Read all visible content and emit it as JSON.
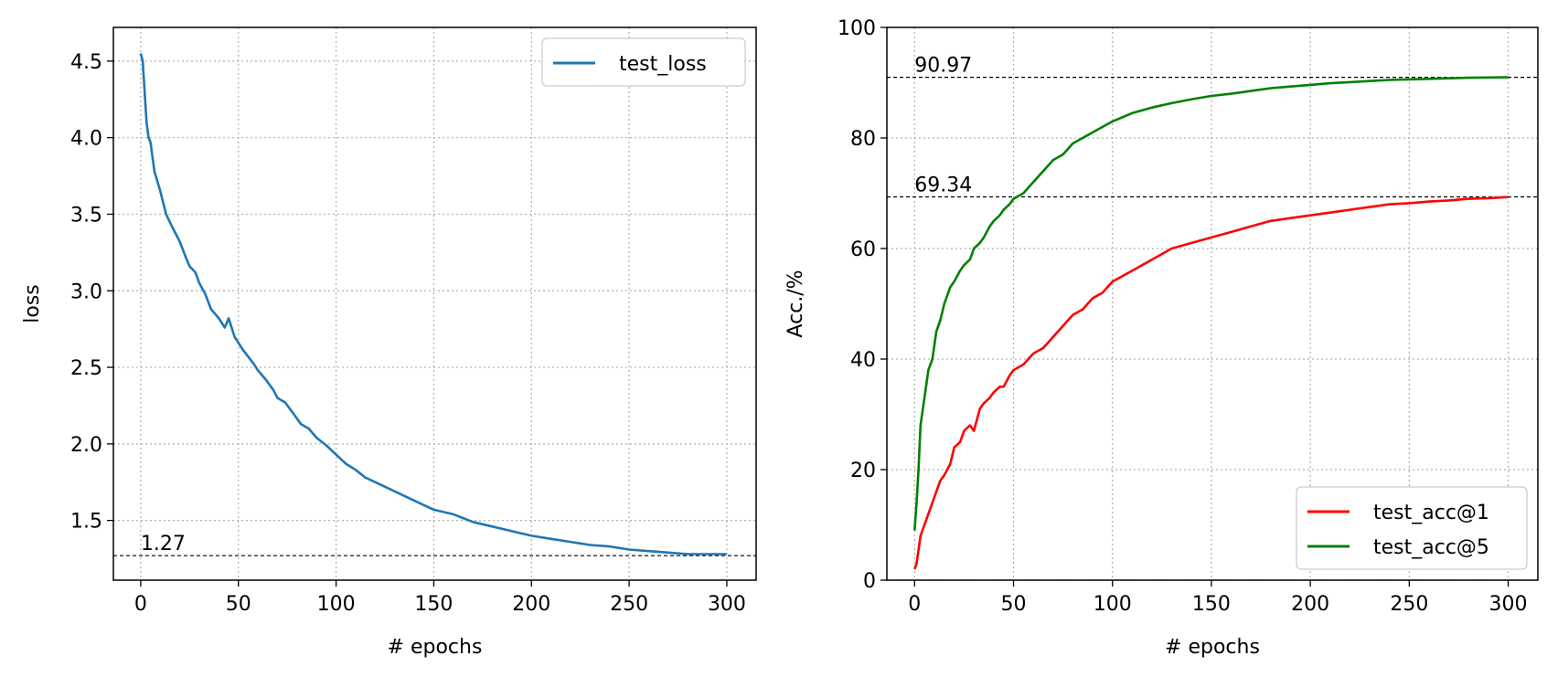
{
  "chart_data": [
    {
      "type": "line",
      "title": "",
      "xlabel": "# epochs",
      "ylabel": "loss",
      "xlim": [
        -14,
        315
      ],
      "ylim": [
        1.11,
        4.72
      ],
      "xticks": [
        0,
        50,
        100,
        150,
        200,
        250,
        300
      ],
      "yticks": [
        1.5,
        2.0,
        2.5,
        3.0,
        3.5,
        4.0,
        4.5
      ],
      "ytick_labels": [
        "1.5",
        "2.0",
        "2.5",
        "3.0",
        "3.5",
        "4.0",
        "4.5"
      ],
      "grid": true,
      "legend_position": "top-right",
      "series": [
        {
          "name": "test_loss",
          "color": "#1f77b4",
          "x": [
            0,
            1,
            2,
            3,
            4,
            5,
            7,
            10,
            13,
            16,
            20,
            23,
            25,
            28,
            30,
            33,
            36,
            40,
            43,
            45,
            48,
            52,
            55,
            58,
            60,
            64,
            68,
            70,
            74,
            78,
            82,
            86,
            90,
            95,
            100,
            105,
            110,
            115,
            120,
            130,
            140,
            150,
            160,
            170,
            180,
            190,
            200,
            210,
            220,
            230,
            240,
            250,
            260,
            270,
            280,
            290,
            300
          ],
          "values": [
            4.55,
            4.5,
            4.3,
            4.1,
            4.0,
            3.97,
            3.78,
            3.65,
            3.5,
            3.42,
            3.32,
            3.22,
            3.16,
            3.12,
            3.05,
            2.98,
            2.88,
            2.82,
            2.76,
            2.82,
            2.7,
            2.62,
            2.57,
            2.52,
            2.48,
            2.42,
            2.35,
            2.3,
            2.27,
            2.2,
            2.13,
            2.1,
            2.04,
            1.99,
            1.93,
            1.87,
            1.83,
            1.78,
            1.75,
            1.69,
            1.63,
            1.57,
            1.54,
            1.49,
            1.46,
            1.43,
            1.4,
            1.38,
            1.36,
            1.34,
            1.33,
            1.31,
            1.3,
            1.29,
            1.28,
            1.28,
            1.28
          ]
        }
      ],
      "hlines": [
        {
          "value": 1.27,
          "label": "1.27"
        }
      ]
    },
    {
      "type": "line",
      "title": "",
      "xlabel": "# epochs",
      "ylabel": "Acc./%",
      "xlim": [
        -14,
        315
      ],
      "ylim": [
        0,
        100
      ],
      "xticks": [
        0,
        50,
        100,
        150,
        200,
        250,
        300
      ],
      "yticks": [
        0,
        20,
        40,
        60,
        80,
        100
      ],
      "ytick_labels": [
        "0",
        "20",
        "40",
        "60",
        "80",
        "100"
      ],
      "grid": true,
      "legend_position": "bottom-right",
      "series": [
        {
          "name": "test_acc@1",
          "color": "#ff0000",
          "x": [
            0,
            1,
            3,
            5,
            8,
            10,
            13,
            15,
            18,
            20,
            23,
            25,
            28,
            30,
            33,
            35,
            38,
            40,
            43,
            45,
            48,
            50,
            55,
            60,
            65,
            70,
            75,
            80,
            85,
            90,
            95,
            100,
            110,
            120,
            130,
            140,
            150,
            160,
            170,
            180,
            190,
            200,
            210,
            220,
            230,
            240,
            250,
            260,
            270,
            280,
            290,
            300
          ],
          "values": [
            2,
            3,
            8,
            10,
            13,
            15,
            18,
            19,
            21,
            24,
            25,
            27,
            28,
            27,
            31,
            32,
            33,
            34,
            35,
            35,
            37,
            38,
            39,
            41,
            42,
            44,
            46,
            48,
            49,
            51,
            52,
            54,
            56,
            58,
            60,
            61,
            62,
            63,
            64,
            65,
            65.5,
            66,
            66.5,
            67,
            67.5,
            68,
            68.2,
            68.5,
            68.7,
            69,
            69.1,
            69.3
          ]
        },
        {
          "name": "test_acc@5",
          "color": "#008000",
          "x": [
            0,
            1,
            2,
            3,
            5,
            7,
            9,
            11,
            13,
            15,
            18,
            20,
            23,
            25,
            28,
            30,
            33,
            35,
            38,
            40,
            43,
            45,
            48,
            50,
            55,
            60,
            65,
            70,
            75,
            80,
            85,
            90,
            95,
            100,
            110,
            120,
            130,
            140,
            150,
            160,
            170,
            180,
            190,
            200,
            210,
            220,
            230,
            240,
            250,
            260,
            270,
            280,
            290,
            300
          ],
          "values": [
            9,
            14,
            20,
            28,
            33,
            38,
            40,
            45,
            47,
            50,
            53,
            54,
            56,
            57,
            58,
            60,
            61,
            62,
            64,
            65,
            66,
            67,
            68,
            69,
            70,
            72,
            74,
            76,
            77,
            79,
            80,
            81,
            82,
            83,
            84.5,
            85.5,
            86.3,
            87,
            87.6,
            88,
            88.5,
            89,
            89.3,
            89.6,
            89.9,
            90.1,
            90.3,
            90.5,
            90.6,
            90.7,
            90.8,
            90.9,
            90.95,
            90.97
          ]
        }
      ],
      "hlines": [
        {
          "value": 90.97,
          "label": "90.97"
        },
        {
          "value": 69.34,
          "label": "69.34"
        }
      ]
    }
  ]
}
